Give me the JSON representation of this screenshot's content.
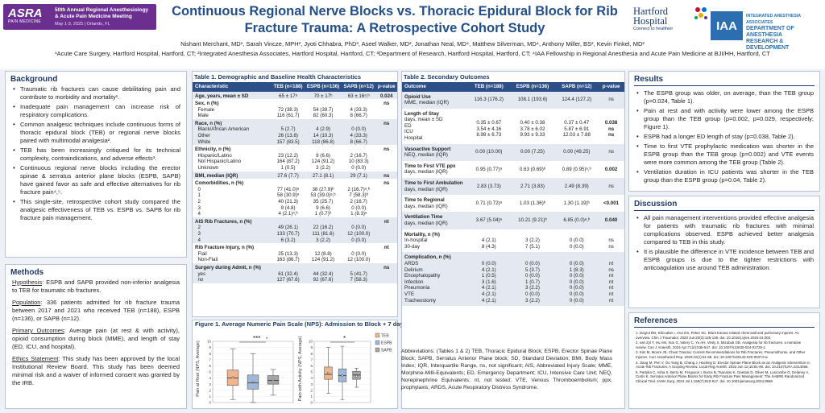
{
  "header": {
    "asra_logo": "ASRA",
    "asra_tagline": "PAIN MEDICINE",
    "meeting_name": "50th Annual Regional Anesthesiology & Acute Pain Medicine Meeting",
    "meeting_dates": "May 1-3, 2025 | Orlando, FL",
    "title_line1": "Continuous Regional Nerve Blocks vs. Thoracic Epidural Block for Rib",
    "title_line2": "Fracture Trauma: A Retrospective Cohort Study",
    "hartford_name_1": "Hartford",
    "hartford_name_2": "Hospital",
    "hartford_tagline": "Connect to healthier",
    "iaa_abbr": "IAA",
    "iaa_line1": "INTEGRATED ANESTHESIA ASSOCIATES",
    "iaa_line2": "DEPARTMENT OF ANESTHESIA",
    "iaa_line3": "RESEARCH & DEVELOPMENT",
    "authors": "Nishant Merchant, MD¹, Sarah Vincze, MPH², Jyoti Chhabra, PhD³, Aseel Walker, MD², Jonathan Neal, MD⁴, Matthew Silverman, MD⁴, Anthony Miller, BS², Kevin Finkel, MD²",
    "affiliations": "¹Acute Care Surgery, Hartford Hospital, Hartford, CT; ²Integrated Anesthesia Associates, Hartford Hospital, Hartford, CT; ³Department of Research, Hartford Hospital, Hartford, CT; ⁴IAA Fellowship in Regional Anesthesia and Acute Pain Medicine at BJI/HH, Hartford, CT"
  },
  "background": {
    "heading": "Background",
    "bullets": [
      "Traumatic rib fractures can cause debilitating pain and contribute to morbidity and mortality¹.",
      "Inadequate pain management can increase risk of respiratory complications.",
      "Common analgesic techniques include continuous forms of thoracic epidural block (TEB) or regional nerve blocks paired with multimodal analgesia².",
      "TEB has been increasingly critiqued for its technical complexity, contraindications, and adverse effects³.",
      "Continuous regional nerve blocks including the erector spinae & serratus anterior plane blocks (ESPB, SAPB) have gained favor as safe and effective alternatives for rib fracture pain⁴,⁵.",
      "This single-site, retrospective cohort study compared the analgesic effectiveness of TEB vs. ESPB vs. SAPB for rib fracture pain management."
    ]
  },
  "methods": {
    "heading": "Methods",
    "items": [
      {
        "label": "Hypothesis",
        "text": ": ESPB and SAPB provided non-inferior analgesia to TEB for traumatic rib fractures."
      },
      {
        "label": "Population",
        "text": ": 336 patients admitted for rib fracture trauma between 2017 and 2021 who received TEB (n=188), ESPB (n=136), or SAPB (n=12)."
      },
      {
        "label": "Primary Outcomes",
        "text": ": Average pain (at rest & with activity), opioid consumption during block (MME), and length of stay (ED, ICU, and hospital)."
      },
      {
        "label": "Ethics Statement",
        "text": ": This study has been approved by the local Institutional Review Board. This study has been deemed minimal risk and a waiver of informed consent was granted by the IRB."
      }
    ]
  },
  "table1": {
    "title": "Table 1. Demographic and Baseline Health Characteristics",
    "headers": [
      "Characteristic",
      "TEB (n=188)",
      "ESPB (n=136)",
      "SAPB (n=12)",
      "p-value"
    ],
    "rows": [
      {
        "c": "Age, years, mean ± SD",
        "t": "65 ± 17ᵃ",
        "e": "70 ± 17ᵇ",
        "s": "63 ± 16ᵃ,ᵇ",
        "p": "0.024",
        "bold": true,
        "band": true
      },
      {
        "c": "Sex, n (%)",
        "t": "",
        "e": "",
        "s": "",
        "p": "ns",
        "bold": true,
        "band": false
      },
      {
        "c": "  Female",
        "t": "72 (38.3)",
        "e": "54 (39.7)",
        "s": "4 (33.3)",
        "p": "",
        "band": false
      },
      {
        "c": "  Male",
        "t": "116 (61.7)",
        "e": "82 (60.3)",
        "s": "8 (66.7)",
        "p": "",
        "band": false
      },
      {
        "c": "Race, n (%)",
        "t": "",
        "e": "",
        "s": "",
        "p": "ns",
        "bold": true,
        "band": true
      },
      {
        "c": "  Black/African American",
        "t": "5 (2.7)",
        "e": "4 (2.9)",
        "s": "0 (0.0)",
        "p": "",
        "band": true
      },
      {
        "c": "  Other",
        "t": "26 (13.8)",
        "e": "14 (10.3)",
        "s": "4 (33.3)",
        "p": "",
        "band": true
      },
      {
        "c": "  White",
        "t": "157 (83.5)",
        "e": "118 (86.8)",
        "s": "8 (66.7)",
        "p": "",
        "band": true
      },
      {
        "c": "Ethnicity, n (%)",
        "t": "",
        "e": "",
        "s": "",
        "p": "ns",
        "bold": true,
        "band": false
      },
      {
        "c": "  Hispanic/Latino",
        "t": "23 (12.2)",
        "e": "9 (6.6)",
        "s": "2 (16.7)",
        "p": "",
        "band": false
      },
      {
        "c": "  Not Hispanic/Latino",
        "t": "164 (87.2)",
        "e": "124 (91.2)",
        "s": "10 (83.3)",
        "p": "",
        "band": false
      },
      {
        "c": "  Unknown",
        "t": "1 (0.5)",
        "e": "3 (2.2)",
        "s": "0 (0.0)",
        "p": "",
        "band": false
      },
      {
        "c": "BMI, median (IQR)",
        "t": "27.6 (7.7)",
        "e": "27.1 (8.1)",
        "s": "29 (7.1)",
        "p": "ns",
        "bold": true,
        "band": true
      },
      {
        "c": "Comorbidities, n (%)",
        "t": "",
        "e": "",
        "s": "",
        "p": "ns",
        "bold": true,
        "band": false
      },
      {
        "c": "  0",
        "t": "77 (41.0)ᵃ",
        "e": "38 (27.9)ᵇ",
        "s": "2 (16.7)ᵃ,ᵇ",
        "p": "",
        "band": false
      },
      {
        "c": "  1",
        "t": "58 (30.9)ᵃ",
        "e": "53 (39.0)ᵃ,ᵇ",
        "s": "7 (58.3)ᵇ",
        "p": "",
        "band": false
      },
      {
        "c": "  2",
        "t": "40 (21.3)",
        "e": "35 (25.7)",
        "s": "2 (16.7)",
        "p": "",
        "band": false
      },
      {
        "c": "  3",
        "t": "9 (4.8)",
        "e": "9 (6.6)",
        "s": "0 (0.0)",
        "p": "",
        "band": false
      },
      {
        "c": "  4",
        "t": "4 (2.1)ᵃ,ᵇ",
        "e": "1 (0.7)ᵇ",
        "s": "1 (8.3)ᵃ",
        "p": "",
        "band": false
      },
      {
        "c": "AIS Rib Fractures, n (%)",
        "t": "",
        "e": "",
        "s": "",
        "p": "nt",
        "bold": true,
        "band": true
      },
      {
        "c": "  2",
        "t": "49 (26.1)",
        "e": "22 (16.2)",
        "s": "0 (0.0)",
        "p": "",
        "band": true
      },
      {
        "c": "  3",
        "t": "133 (70.7)",
        "e": "111 (81.6)",
        "s": "12 (100.0)",
        "p": "",
        "band": true
      },
      {
        "c": "  4",
        "t": "6 (3.2)",
        "e": "3 (2.2)",
        "s": "0 (0.0)",
        "p": "",
        "band": true
      },
      {
        "c": "Rib Fracture Injury, n (%)",
        "t": "",
        "e": "",
        "s": "",
        "p": "nt",
        "bold": true,
        "band": false
      },
      {
        "c": "  Flail",
        "t": "25 (13.3)",
        "e": "12 (8.8)",
        "s": "0 (0.0)",
        "p": "",
        "band": false
      },
      {
        "c": "  Non-Flail",
        "t": "163 (86.7)",
        "e": "124 (91.2)",
        "s": "12 (100.0)",
        "p": "",
        "band": false
      },
      {
        "c": "Surgery during Admit, n (%)",
        "t": "",
        "e": "",
        "s": "",
        "p": "ns",
        "bold": true,
        "band": true
      },
      {
        "c": "  yes",
        "t": "61 (32.4)",
        "e": "44 (32.4)",
        "s": "5 (41.7)",
        "p": "",
        "band": true
      },
      {
        "c": "  no",
        "t": "127 (67.6)",
        "e": "92 (67.6)",
        "s": "7 (58.3)",
        "p": "",
        "band": true
      }
    ]
  },
  "figure1": {
    "title": "Figure 1. Average Numeric Pain Scale (NPS): Admission to Block + 7 days",
    "left_ylabel": "Pain at Rest (NPS, Average)",
    "right_ylabel": "Pain with Activity (NPS, Average)",
    "left_sig": "***",
    "left_sig2": "*",
    "right_sig": "*",
    "legend": [
      "TEB",
      "ESPB",
      "SAPB"
    ],
    "colors": {
      "TEB": "#f2b48c",
      "ESPB": "#9fb8d9",
      "SAPB": "#a6a6a6"
    }
  },
  "chart_data": [
    {
      "type": "box",
      "title": "Pain at Rest",
      "ylabel": "Pain at Rest (NPS, Average)",
      "ylim": [
        0,
        10
      ],
      "yticks": [
        0,
        1,
        2,
        3,
        4,
        5,
        6,
        7,
        8,
        9,
        10
      ],
      "series": [
        {
          "name": "TEB",
          "min": 0.5,
          "q1": 2.8,
          "median": 4.0,
          "q3": 5.3,
          "max": 8.8,
          "mean": 4.1
        },
        {
          "name": "ESPB",
          "min": 0.0,
          "q1": 2.2,
          "median": 3.2,
          "q3": 4.5,
          "max": 8.0,
          "mean": 3.4
        },
        {
          "name": "SAPB",
          "min": 1.2,
          "q1": 3.0,
          "median": 3.6,
          "q3": 4.4,
          "max": 5.4,
          "mean": 3.7
        }
      ]
    },
    {
      "type": "box",
      "title": "Pain with Activity",
      "ylabel": "Pain with Activity (NPS, Average)",
      "ylim": [
        0,
        10
      ],
      "yticks": [
        0,
        1,
        2,
        3,
        4,
        5,
        6,
        7,
        8,
        9,
        10
      ],
      "series": [
        {
          "name": "TEB",
          "min": 1.5,
          "q1": 3.8,
          "median": 4.6,
          "q3": 5.8,
          "max": 9.0,
          "mean": 4.8
        },
        {
          "name": "ESPB",
          "min": 0.5,
          "q1": 3.4,
          "median": 4.4,
          "q3": 5.5,
          "max": 9.2,
          "mean": 4.4
        },
        {
          "name": "SAPB",
          "min": 2.5,
          "q1": 3.8,
          "median": 4.5,
          "q3": 5.1,
          "max": 5.6,
          "mean": 4.3
        }
      ]
    }
  ],
  "table2": {
    "title": "Table 2. Secondary Outcomes",
    "headers": [
      "Outcome",
      "TEB (n=188)",
      "ESPB (n=136)",
      "SAPB (n=12)",
      "p-value"
    ],
    "rows": [
      {
        "c": "Opioid Use",
        "sub": "MME, median (IQR)",
        "t": "116.3 (176.2)",
        "e": "108.1 (193.6)",
        "s": "124.4 (127.2)",
        "p": "ns",
        "band": true
      },
      {
        "c": "Length of Stay",
        "sub": "days, mean ± SD\nED\nICU\nHospital",
        "t": "\n0.35 ± 0.67\n3.54 ± 4.16\n8.98 ± 6.73",
        "e": "\n0.40 ± 0.38\n3.78 ± 6.02\n9.93 ± 9.33",
        "s": "\n0.37 ± 0.47\n5.87 ± 6.91\n12.03 ± 7.88",
        "p": "\n0.038\nns\nns",
        "band": false
      },
      {
        "c": "Vasoactive Support",
        "sub": "NEQ, median (IQR)",
        "t": "0.00 (10.00)",
        "e": "0.00 (7.25)",
        "s": "0.00 (49.25)",
        "p": "ns",
        "band": true
      },
      {
        "c": "Time to First VTE ppx",
        "sub": "days, median (IQR)",
        "t": "0.95 (0.77)ᵃ",
        "e": "0.63 (0.69)ᵇ",
        "s": "0.89 (0.95)ᵃ,ᵇ",
        "p": "0.002",
        "band": false
      },
      {
        "c": "Time to First Ambulation",
        "sub": "days, median (IQR)",
        "t": "2.83 (3.73)",
        "e": "2.71 (3.83)",
        "s": "2.49 (8.39)",
        "p": "ns",
        "band": true
      },
      {
        "c": "Time to Regional",
        "sub": "days, median (IQR)",
        "t": "0.71 (0.72)ᵃ",
        "e": "1.03 (1.36)ᵇ",
        "s": "1.30 (1.19)ᵇ",
        "p": "<0.001",
        "band": false
      },
      {
        "c": "Ventilation Time",
        "sub": "days, median (IQR)",
        "t": "3.67 (5.04)ᵃ",
        "e": "10.21 (9.21)ᵇ",
        "s": "6.85 (0.0)ᵃ,ᵇ",
        "p": "0.040",
        "band": true
      },
      {
        "c": "Mortality, n (%)",
        "sub": "In-hospital\n30-day",
        "t": "\n4 (2.1)\n8 (4.3)",
        "e": "\n3 (2.2)\n7 (5.1)",
        "s": "\n0 (0.0)\n0 (0.0)",
        "p": "\nns\nns",
        "band": false
      },
      {
        "c": "Complication, n (%)",
        "sub": "ARDS\nDelirium\nEncephalopathy\nInfection\nPneumonia\nVTE\nTracheostomy",
        "t": "\n0 (0.0)\n4 (2.1)\n1 (0.5)\n3 (1.6)\n4 (2.1)\n4 (2.1)\n4 (2.1)",
        "e": "\n0 (0.0)\n5 (3.7)\n0 (0.0)\n1 (0.7)\n3 (2.2)\n0 (0.0)\n3 (2.2)",
        "s": "\n0 (0.0)\n1 (8.3)\n0 (0.0)\n0 (0.0)\n0 (0.0)\n0 (0.0)\n0 (0.0)",
        "p": "\nnt\nns\nnt\nnt\nnt\nnt\nnt",
        "band": true
      }
    ]
  },
  "abbreviations": "Abbreviations: (Tables 1 & 2) TEB, Thoracic Epidural Block; ESPB, Erector Spinae Plane Block; SAPB, Serratus Anterior Plane block; SD, Standard Deviation; BMI, Body Mass Index; IQR, Interquartile Range, ns, not significant; AIS, Abbreviated Injury Scale; MME, Morphine-Milli-Equivalents; ED, Emergency Department; ICU, Intensive Care Unit; NEQ, Norepinephrine Equivalents; nt, not tested; VTE, Venous Thromboembolism; ppx, prophylaxis; ARDS, Acute Respiratory Distress Syndrome.",
  "results": {
    "heading": "Results",
    "bullets": [
      "The ESPB group was older, on average, than the TEB group (p=0.024, Table 1).",
      "Pain at rest and with activity were lower among the ESPB group than the TEB group (p=0.002, p=0.029, respectively; Figure 1).",
      "ESPB had a longer ED length of stay (p=0.038, Table 2).",
      "Time to first VTE prophylactic medication was shorter in the ESPB group than the TEB group (p=0.002) and VTE events were more common among the TEB group (Table 2).",
      "Ventilation duration in ICU patients was shorter in the TEB group than the ESPB group (p=0.04, Table 2)."
    ]
  },
  "discussion": {
    "heading": "Discussion",
    "bullets": [
      "All pain management interventions provided effective analgesia for patients with traumatic rib fractures with minimal complications observed. ESPB achieved better analgesia compared to TEB in this study.",
      "It is plausible the difference in VTE incidence between TEB and ESPB groups is due to the tighter restrictions with anticoagulation use around TEB administration."
    ]
  },
  "references": {
    "heading": "References",
    "items": [
      "1. Dogrul BN, Kiliccalan I, Asci ES, Peker SC. Blunt trauma related chest wall and pulmonary injuries: An overview. Chin J Traumatol. 2020 Jun;23(3):125-138. doi: 10.1016/j.cjtee.2020.04.003.",
      "2. van Zyl T, Hu AM, Xiar G, Valery C, Yu AH, Vesly S, Mizubuti GB. Analgesia for rib fractures: a narrative review. Can J Anaesth. 2024 Apr;71(4):535-547. doi: 10.1007/s12630-024-02725-1.",
      "3. Kim M, Moore JE. Chest Trauma: Current Recommendations for Rib Fractures, Pneumothorax, and Other Injuries. Curr Anesthesiol Rep. 2020;10(1):61-68. doi: 10.1007/s40140-020-00374-w.",
      "4. Jiang M, Peri V, Ou Yang B, Chang J, Hacking D. Erector Spinae Plane Block as an Analgesic Intervention in Acute Rib Fractures: A Scoping Review. Local Reg Anesth. 2023 Jun 12;16:81-90. doi: 10.2147/LRA.S414056.",
      "5. Partyka C, Asha S, Berry M, Ferguson I, Burns B, Tsacalos K, Gaetani D, Oliver M, Luscombe G, Delaney A, Curtis K. Serratus Anterior Plane Blocks for Early Rib Fracture Pain Management: The SABRE Randomized Clinical Trial. JAMA Surg. 2024 Jul 1;159(7):810-817. doi: 10.1001/jamasurg.2024.0969."
    ]
  }
}
